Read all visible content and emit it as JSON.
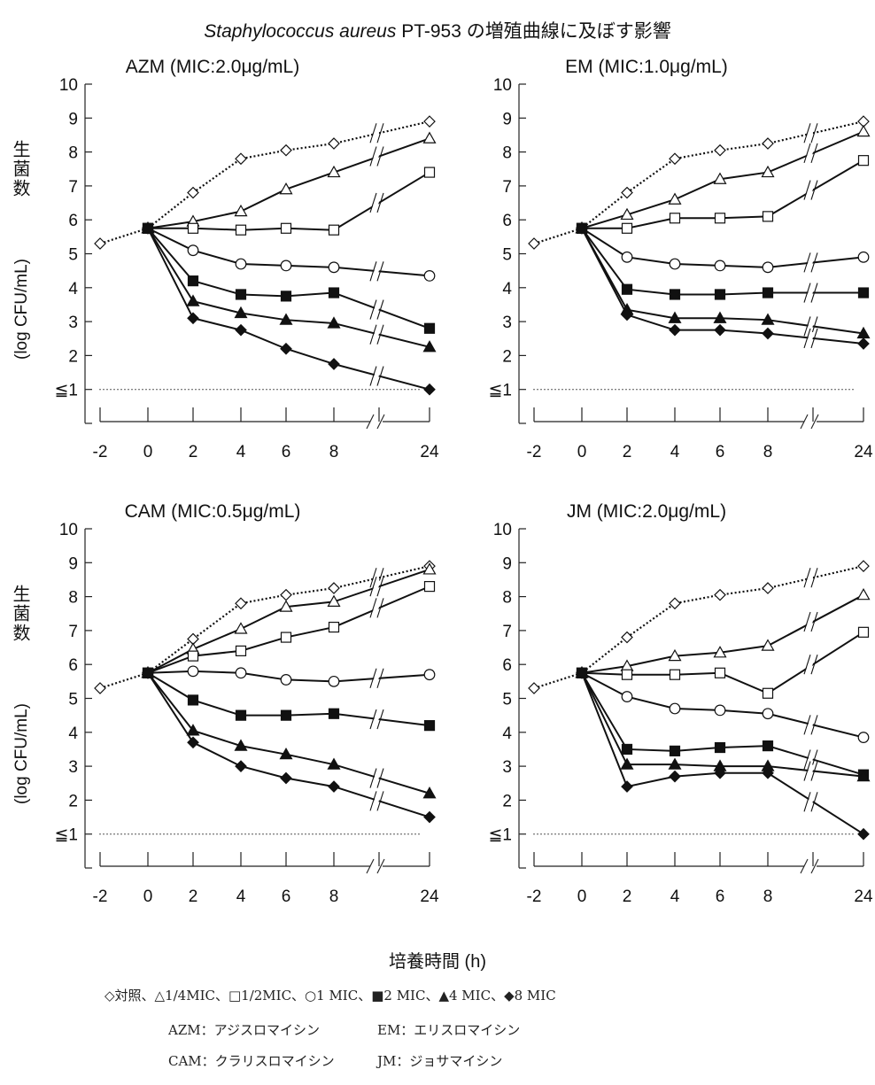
{
  "figure": {
    "title_italic": "Staphylococcus aureus",
    "title_rest": " PT-953 の増殖曲線に及ぼす影響",
    "xaxis_label": "培養時間 (h)",
    "ylabel_line1": "生菌数",
    "ylabel_line2": "(log CFU/mL)",
    "ytick_low_label": "≦1"
  },
  "legend": {
    "markers": "◇対照、△1/4MIC、□1/2MIC、○1 MIC、■2 MIC、▲4 MIC、◆8 MIC",
    "abbr": [
      {
        "code": "AZM：アジスロマイシン",
        "code2": "EM：エリスロマイシン"
      },
      {
        "code": "CAM：クラリスロマイシン",
        "code2": "JM：ジョサマイシン"
      }
    ]
  },
  "chart_data": [
    {
      "type": "line",
      "title": "AZM (MIC:2.0μg/mL)",
      "xlabel": "培養時間 (h)",
      "ylabel": "生菌数 (log CFU/mL)",
      "x_ticks": [
        "-2",
        "0",
        "2",
        "4",
        "6",
        "8",
        "24"
      ],
      "ylim": [
        1,
        10
      ],
      "x": [
        -2,
        0,
        2,
        4,
        6,
        8,
        24
      ],
      "series": [
        {
          "name": "◇対照",
          "marker": "diamond-open",
          "dashed": true,
          "x": [
            -2,
            0,
            2,
            4,
            6,
            8,
            24
          ],
          "values": [
            5.3,
            5.75,
            6.8,
            7.8,
            8.05,
            8.25,
            8.9
          ]
        },
        {
          "name": "△1/4MIC",
          "marker": "triangle-open",
          "x": [
            0,
            2,
            4,
            6,
            8,
            24
          ],
          "values": [
            5.75,
            5.95,
            6.25,
            6.9,
            7.4,
            8.4
          ]
        },
        {
          "name": "□1/2MIC",
          "marker": "square-open",
          "x": [
            0,
            2,
            4,
            6,
            8,
            24
          ],
          "values": [
            5.75,
            5.75,
            5.7,
            5.75,
            5.7,
            7.4
          ]
        },
        {
          "name": "○1 MIC",
          "marker": "circle-open",
          "x": [
            0,
            2,
            4,
            6,
            8,
            24
          ],
          "values": [
            5.75,
            5.1,
            4.7,
            4.65,
            4.6,
            4.35
          ]
        },
        {
          "name": "■2 MIC",
          "marker": "square-filled",
          "x": [
            0,
            2,
            4,
            6,
            8,
            24
          ],
          "values": [
            5.75,
            4.2,
            3.8,
            3.75,
            3.85,
            2.8
          ]
        },
        {
          "name": "▲4 MIC",
          "marker": "triangle-filled",
          "x": [
            0,
            2,
            4,
            6,
            8,
            24
          ],
          "values": [
            5.75,
            3.6,
            3.25,
            3.05,
            2.95,
            2.25
          ]
        },
        {
          "name": "◆8 MIC",
          "marker": "diamond-filled",
          "x": [
            0,
            2,
            4,
            6,
            8,
            24
          ],
          "values": [
            5.75,
            3.1,
            2.75,
            2.2,
            1.75,
            1.0
          ]
        }
      ]
    },
    {
      "type": "line",
      "title": "EM (MIC:1.0μg/mL)",
      "xlabel": "培養時間 (h)",
      "ylabel": "生菌数 (log CFU/mL)",
      "x_ticks": [
        "-2",
        "0",
        "2",
        "4",
        "6",
        "8",
        "24"
      ],
      "ylim": [
        1,
        10
      ],
      "x": [
        -2,
        0,
        2,
        4,
        6,
        8,
        24
      ],
      "series": [
        {
          "name": "◇対照",
          "marker": "diamond-open",
          "dashed": true,
          "x": [
            -2,
            0,
            2,
            4,
            6,
            8,
            24
          ],
          "values": [
            5.3,
            5.75,
            6.8,
            7.8,
            8.05,
            8.25,
            8.9
          ]
        },
        {
          "name": "△1/4MIC",
          "marker": "triangle-open",
          "x": [
            0,
            2,
            4,
            6,
            8,
            24
          ],
          "values": [
            5.75,
            6.15,
            6.6,
            7.2,
            7.4,
            8.6
          ]
        },
        {
          "name": "□1/2MIC",
          "marker": "square-open",
          "x": [
            0,
            2,
            4,
            6,
            8,
            24
          ],
          "values": [
            5.75,
            5.75,
            6.05,
            6.05,
            6.1,
            7.75
          ]
        },
        {
          "name": "○1 MIC",
          "marker": "circle-open",
          "x": [
            0,
            2,
            4,
            6,
            8,
            24
          ],
          "values": [
            5.75,
            4.9,
            4.7,
            4.65,
            4.6,
            4.9
          ]
        },
        {
          "name": "■2 MIC",
          "marker": "square-filled",
          "x": [
            0,
            2,
            4,
            6,
            8,
            24
          ],
          "values": [
            5.75,
            3.95,
            3.8,
            3.8,
            3.85,
            3.85
          ]
        },
        {
          "name": "▲4 MIC",
          "marker": "triangle-filled",
          "x": [
            0,
            2,
            4,
            6,
            8,
            24
          ],
          "values": [
            5.75,
            3.35,
            3.1,
            3.1,
            3.05,
            2.65
          ]
        },
        {
          "name": "◆8 MIC",
          "marker": "diamond-filled",
          "x": [
            0,
            2,
            4,
            6,
            8,
            24
          ],
          "values": [
            5.75,
            3.2,
            2.75,
            2.75,
            2.65,
            2.35
          ]
        }
      ]
    },
    {
      "type": "line",
      "title": "CAM (MIC:0.5μg/mL)",
      "xlabel": "培養時間 (h)",
      "ylabel": "生菌数 (log CFU/mL)",
      "x_ticks": [
        "-2",
        "0",
        "2",
        "4",
        "6",
        "8",
        "24"
      ],
      "ylim": [
        1,
        10
      ],
      "x": [
        -2,
        0,
        2,
        4,
        6,
        8,
        24
      ],
      "series": [
        {
          "name": "◇対照",
          "marker": "diamond-open",
          "dashed": true,
          "x": [
            -2,
            0,
            2,
            4,
            6,
            8,
            24
          ],
          "values": [
            5.3,
            5.75,
            6.75,
            7.8,
            8.05,
            8.25,
            8.9
          ]
        },
        {
          "name": "△1/4MIC",
          "marker": "triangle-open",
          "x": [
            0,
            2,
            4,
            6,
            8,
            24
          ],
          "values": [
            5.75,
            6.45,
            7.05,
            7.7,
            7.85,
            8.8
          ]
        },
        {
          "name": "□1/2MIC",
          "marker": "square-open",
          "x": [
            0,
            2,
            4,
            6,
            8,
            24
          ],
          "values": [
            5.75,
            6.25,
            6.4,
            6.8,
            7.1,
            8.3
          ]
        },
        {
          "name": "○1 MIC",
          "marker": "circle-open",
          "x": [
            0,
            2,
            4,
            6,
            8,
            24
          ],
          "values": [
            5.75,
            5.8,
            5.75,
            5.55,
            5.5,
            5.7
          ]
        },
        {
          "name": "■2 MIC",
          "marker": "square-filled",
          "x": [
            0,
            2,
            4,
            6,
            8,
            24
          ],
          "values": [
            5.75,
            4.95,
            4.5,
            4.5,
            4.55,
            4.2
          ]
        },
        {
          "name": "▲4 MIC",
          "marker": "triangle-filled",
          "x": [
            0,
            2,
            4,
            6,
            8,
            24
          ],
          "values": [
            5.75,
            4.05,
            3.6,
            3.35,
            3.05,
            2.2
          ]
        },
        {
          "name": "◆8 MIC",
          "marker": "diamond-filled",
          "x": [
            0,
            2,
            4,
            6,
            8,
            24
          ],
          "values": [
            5.75,
            3.7,
            3.0,
            2.65,
            2.4,
            1.5
          ]
        }
      ]
    },
    {
      "type": "line",
      "title": "JM (MIC:2.0μg/mL)",
      "xlabel": "培養時間 (h)",
      "ylabel": "生菌数 (log CFU/mL)",
      "x_ticks": [
        "-2",
        "0",
        "2",
        "4",
        "6",
        "8",
        "24"
      ],
      "ylim": [
        1,
        10
      ],
      "x": [
        -2,
        0,
        2,
        4,
        6,
        8,
        24
      ],
      "series": [
        {
          "name": "◇対照",
          "marker": "diamond-open",
          "dashed": true,
          "x": [
            -2,
            0,
            2,
            4,
            6,
            8,
            24
          ],
          "values": [
            5.3,
            5.75,
            6.8,
            7.8,
            8.05,
            8.25,
            8.9
          ]
        },
        {
          "name": "△1/4MIC",
          "marker": "triangle-open",
          "x": [
            0,
            2,
            4,
            6,
            8,
            24
          ],
          "values": [
            5.75,
            5.95,
            6.25,
            6.35,
            6.55,
            8.05
          ]
        },
        {
          "name": "□1/2MIC",
          "marker": "square-open",
          "x": [
            0,
            2,
            4,
            6,
            8,
            24
          ],
          "values": [
            5.75,
            5.7,
            5.7,
            5.75,
            5.15,
            6.95
          ]
        },
        {
          "name": "○1 MIC",
          "marker": "circle-open",
          "x": [
            0,
            2,
            4,
            6,
            8,
            24
          ],
          "values": [
            5.75,
            5.05,
            4.7,
            4.65,
            4.55,
            3.85
          ]
        },
        {
          "name": "■2 MIC",
          "marker": "square-filled",
          "x": [
            0,
            2,
            4,
            6,
            8,
            24
          ],
          "values": [
            5.75,
            3.5,
            3.45,
            3.55,
            3.6,
            2.75
          ]
        },
        {
          "name": "▲4 MIC",
          "marker": "triangle-filled",
          "x": [
            0,
            2,
            4,
            6,
            8,
            24
          ],
          "values": [
            5.75,
            3.05,
            3.05,
            3.0,
            3.0,
            2.7
          ]
        },
        {
          "name": "◆8 MIC",
          "marker": "diamond-filled",
          "x": [
            0,
            2,
            4,
            6,
            8,
            24
          ],
          "values": [
            5.75,
            2.4,
            2.7,
            2.8,
            2.8,
            1.0
          ]
        }
      ]
    }
  ]
}
